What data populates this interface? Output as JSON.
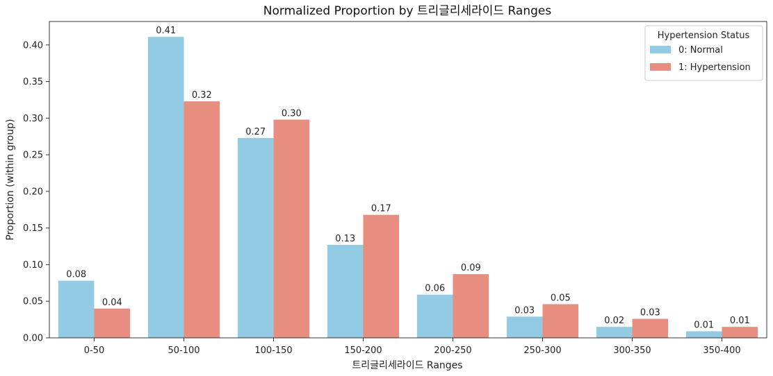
{
  "chart_data": {
    "type": "bar",
    "title": "Normalized Proportion by 트리글리세라이드 Ranges",
    "xlabel": "트리글리세라이드 Ranges",
    "ylabel": "Proportion (within group)",
    "categories": [
      "0-50",
      "50-100",
      "100-150",
      "150-200",
      "200-250",
      "250-300",
      "300-350",
      "350-400"
    ],
    "ylim": [
      0,
      0.432
    ],
    "yticks": [
      0.0,
      0.05,
      0.1,
      0.15,
      0.2,
      0.25,
      0.3,
      0.35,
      0.4
    ],
    "ytick_labels": [
      "0.00",
      "0.05",
      "0.10",
      "0.15",
      "0.20",
      "0.25",
      "0.30",
      "0.35",
      "0.40"
    ],
    "grid": false,
    "legend": {
      "title": "Hypertension Status",
      "placement": "top-right"
    },
    "series": [
      {
        "name": "0: Normal",
        "color": "#92cbe3",
        "values": [
          0.078,
          0.411,
          0.273,
          0.127,
          0.059,
          0.029,
          0.015,
          0.009
        ],
        "labels": [
          "0.08",
          "0.41",
          "0.27",
          "0.13",
          "0.06",
          "0.03",
          "0.02",
          "0.01"
        ]
      },
      {
        "name": "1: Hypertension",
        "color": "#e88e80",
        "values": [
          0.04,
          0.323,
          0.298,
          0.168,
          0.087,
          0.046,
          0.026,
          0.015
        ],
        "labels": [
          "0.04",
          "0.32",
          "0.30",
          "0.17",
          "0.09",
          "0.05",
          "0.03",
          "0.01"
        ]
      }
    ]
  }
}
